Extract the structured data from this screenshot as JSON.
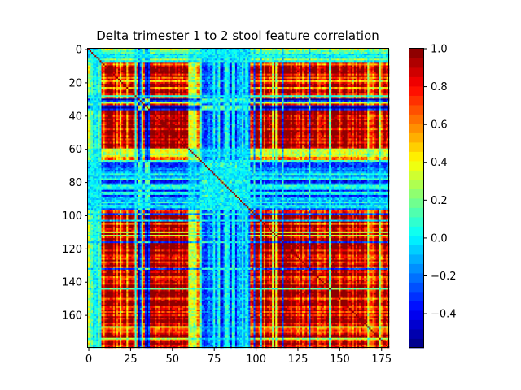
{
  "chart_data": {
    "type": "heatmap",
    "title": "Delta trimester 1 to 2 stool feature correlation",
    "xlabel": "",
    "ylabel": "",
    "n_features": 180,
    "xlim": [
      0,
      179
    ],
    "ylim": [
      0,
      179
    ],
    "x_ticks": [
      0,
      25,
      50,
      75,
      100,
      125,
      150,
      175
    ],
    "x_tick_labels": [
      "0",
      "25",
      "50",
      "75",
      "100",
      "125",
      "150",
      "175"
    ],
    "y_ticks": [
      0,
      20,
      40,
      60,
      80,
      100,
      120,
      140,
      160
    ],
    "y_tick_labels": [
      "0",
      "20",
      "40",
      "60",
      "80",
      "100",
      "120",
      "140",
      "160"
    ],
    "colormap": "jet",
    "color_range": [
      -0.58,
      1.0
    ],
    "colorbar": {
      "ticks": [
        1.0,
        0.8,
        0.6,
        0.4,
        0.2,
        0.0,
        -0.2,
        -0.4
      ],
      "tick_labels": [
        "1.0",
        "0.8",
        "0.6",
        "0.4",
        "0.2",
        "0.0",
        "−0.2",
        "−0.4"
      ],
      "n_levels": 32,
      "placement": "right"
    },
    "diagonal_value": 1.0,
    "block_pattern_approx": [
      {
        "features": [
          0,
          8
        ],
        "value_to_red_group": 0.1
      },
      {
        "features": [
          8,
          28
        ],
        "value_to_red_group": 0.85
      },
      {
        "features": [
          28,
          37
        ],
        "value_to_red_group": -0.45
      },
      {
        "features": [
          37,
          60
        ],
        "value_to_red_group": 0.95
      },
      {
        "features": [
          60,
          68
        ],
        "value_to_red_group": 0.4
      },
      {
        "features": [
          68,
          97
        ],
        "value_to_red_group": -0.15
      },
      {
        "features": [
          97,
          180
        ],
        "value_to_red_group": 0.9
      }
    ]
  }
}
